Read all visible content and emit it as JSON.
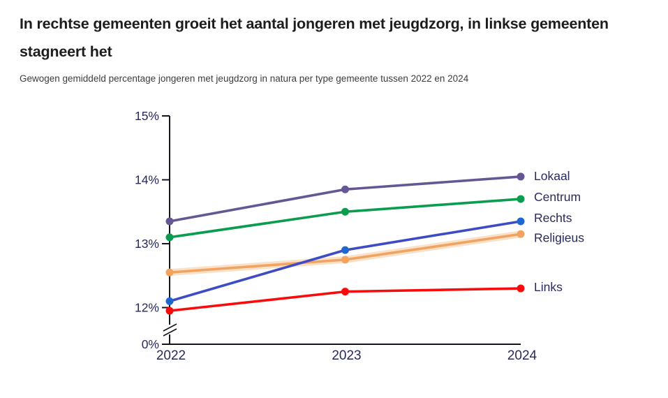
{
  "chart_data": {
    "type": "line",
    "title": "In rechtse gemeenten groeit het aantal jongeren met jeugdzorg, in linkse gemeenten stagneert het",
    "subtitle": "Gewogen gemiddeld percentage jongeren met jeugdzorg in natura per type gemeente tussen 2022 en 2024",
    "x": [
      "2022",
      "2023",
      "2024"
    ],
    "unit": "%",
    "series": [
      {
        "name": "Lokaal",
        "color": "#655694",
        "values": [
          13.35,
          13.85,
          14.05
        ],
        "label_dy": -1
      },
      {
        "name": "Centrum",
        "color": "#0a9d4f",
        "values": [
          13.1,
          13.5,
          13.7
        ],
        "label_dy": -3
      },
      {
        "name": "Rechts",
        "color": "#3d4cc4",
        "marker_color": "#1e66d0",
        "values": [
          12.1,
          12.9,
          13.35
        ],
        "label_dy": -5
      },
      {
        "name": "Religieus",
        "color": "#f1a35f",
        "halo": true,
        "values": [
          12.55,
          12.75,
          13.15
        ],
        "label_dy": 5
      },
      {
        "name": "Links",
        "color": "#fa0b0b",
        "values": [
          11.95,
          12.25,
          12.3
        ],
        "label_dy": -2
      }
    ],
    "yticks": [
      {
        "label": "15%",
        "value": 15
      },
      {
        "label": "14%",
        "value": 14
      },
      {
        "label": "13%",
        "value": 13
      },
      {
        "label": "12%",
        "value": 12
      },
      {
        "label": "0%",
        "value": 0
      }
    ],
    "axis_break": true,
    "ylim": [
      0,
      15
    ],
    "grid": false,
    "legend_position": "right-of-line-ends",
    "colors": {
      "axis": "#15151f",
      "tick_label": "#262a5c",
      "series_label": "#262a5c"
    }
  }
}
